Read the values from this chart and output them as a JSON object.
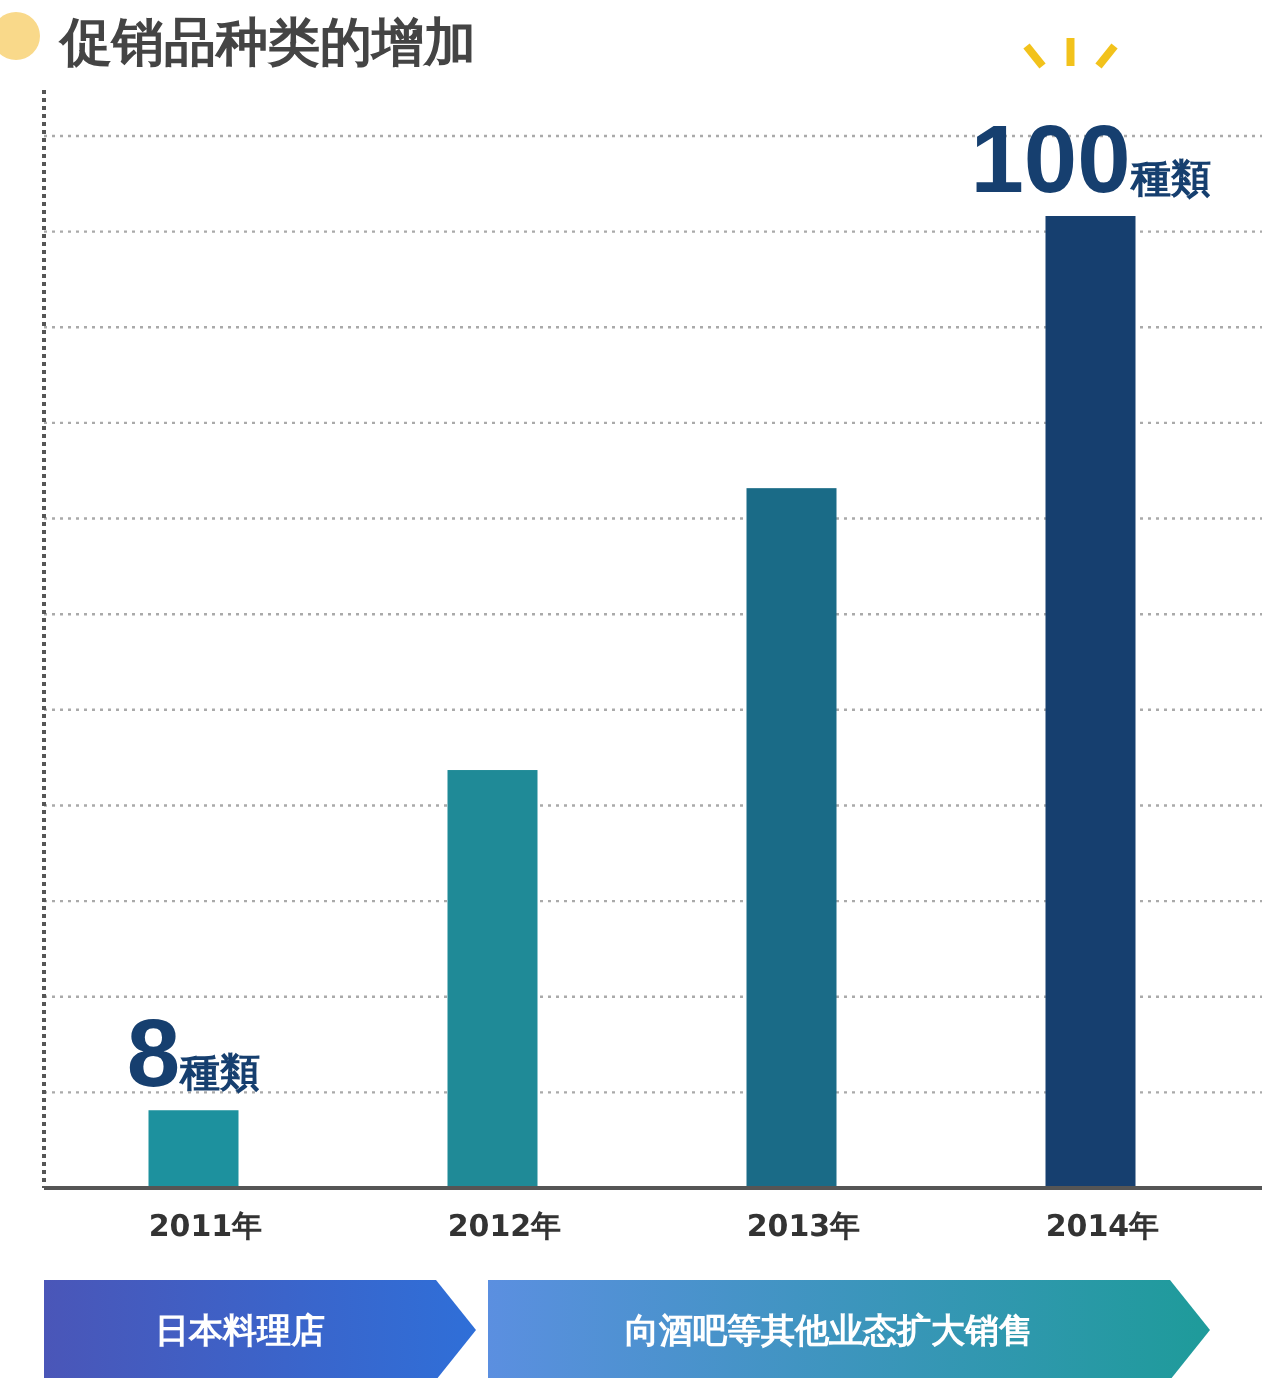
{
  "chart_data": {
    "type": "bar",
    "title": "促销品种类的增加",
    "ylim": [
      0,
      100
    ],
    "categories": [
      "2011年",
      "2012年",
      "2013年",
      "2014年"
    ],
    "values": [
      8,
      43,
      72,
      100
    ],
    "colors": [
      "#1d919e",
      "#1f8a97",
      "#1a6b87",
      "#163f6f"
    ],
    "value_labels": [
      "8種類",
      null,
      null,
      "100種類"
    ],
    "grid": "y",
    "annotations": [
      "日本料理店",
      "向酒吧等其他业态扩大销售"
    ]
  }
}
